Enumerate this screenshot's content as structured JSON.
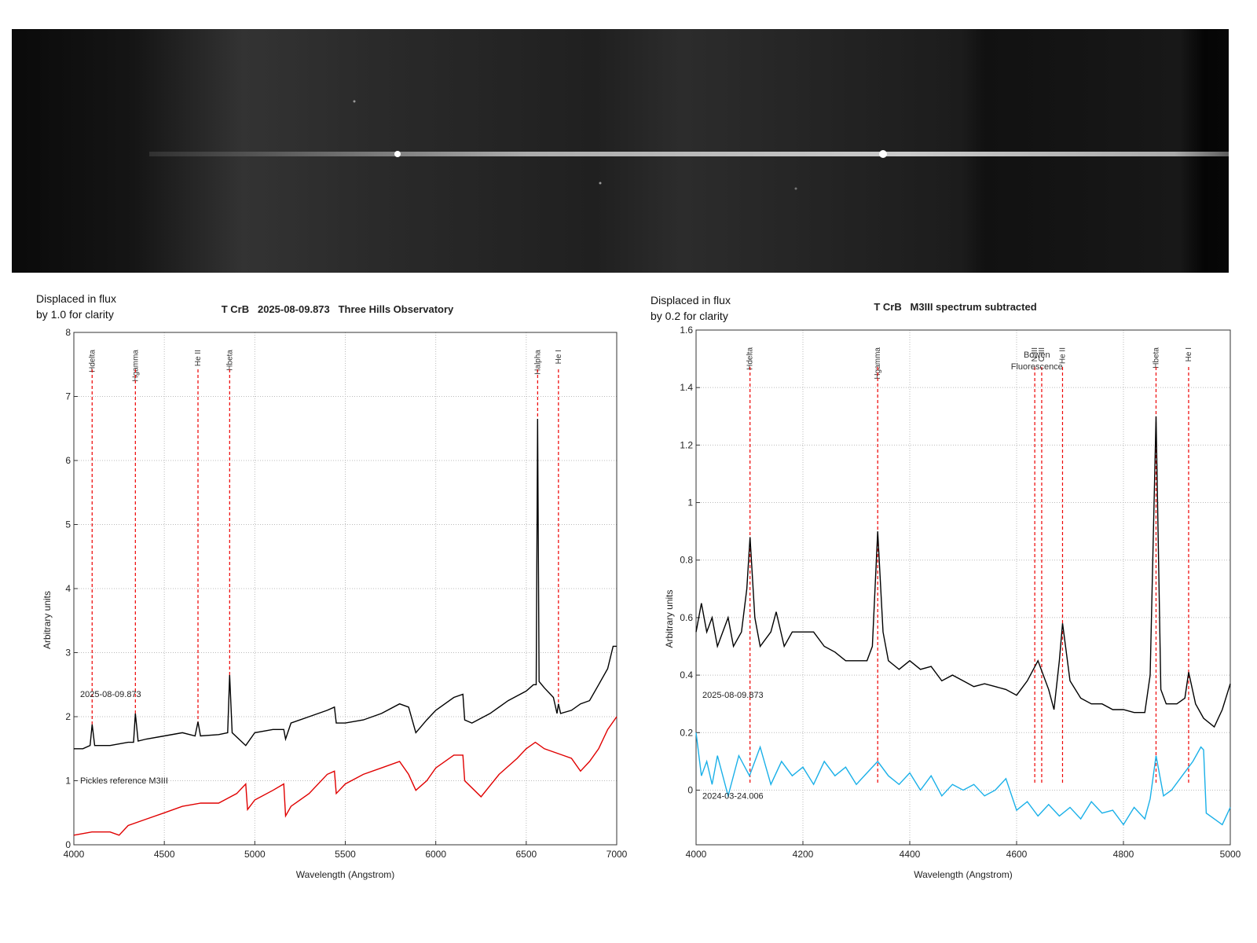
{
  "chart_data": [
    {
      "type": "line",
      "title": "T CrB   2025-08-09.873   Three Hills Observatory",
      "note": [
        "Displaced in flux",
        "by 1.0 for clarity"
      ],
      "xlabel": "Wavelength (Angstrom)",
      "ylabel": "Arbitrary units",
      "xlim": [
        4000,
        7000
      ],
      "xticks": [
        4000,
        4500,
        5000,
        5500,
        6000,
        6500,
        7000
      ],
      "ylim": [
        0,
        8
      ],
      "yticks": [
        0,
        1,
        2,
        3,
        4,
        5,
        6,
        7,
        8
      ],
      "grid": true,
      "annotations": [
        {
          "label": "Hdelta",
          "x": 4101
        },
        {
          "label": "Hgamma",
          "x": 4340
        },
        {
          "label": "He II",
          "x": 4686
        },
        {
          "label": "Hbeta",
          "x": 4861
        },
        {
          "label": "Halpha",
          "x": 6563
        },
        {
          "label": "He I",
          "x": 6678
        }
      ],
      "series": [
        {
          "name": "2025-08-09.873",
          "color": "#000000",
          "x": [
            4000,
            4050,
            4090,
            4101,
            4115,
            4200,
            4300,
            4330,
            4340,
            4355,
            4400,
            4500,
            4600,
            4670,
            4686,
            4700,
            4800,
            4850,
            4861,
            4875,
            4950,
            5000,
            5100,
            5160,
            5170,
            5200,
            5300,
            5400,
            5440,
            5450,
            5500,
            5600,
            5700,
            5800,
            5850,
            5890,
            5950,
            6000,
            6100,
            6150,
            6160,
            6200,
            6300,
            6400,
            6500,
            6540,
            6555,
            6563,
            6571,
            6600,
            6650,
            6670,
            6678,
            6690,
            6750,
            6800,
            6850,
            6900,
            6950,
            6980,
            7000
          ],
          "values": [
            1.5,
            1.5,
            1.55,
            1.88,
            1.55,
            1.55,
            1.6,
            1.6,
            2.05,
            1.62,
            1.65,
            1.7,
            1.75,
            1.7,
            1.92,
            1.7,
            1.72,
            1.75,
            2.65,
            1.75,
            1.55,
            1.75,
            1.8,
            1.8,
            1.65,
            1.9,
            2.0,
            2.1,
            2.15,
            1.9,
            1.9,
            1.95,
            2.05,
            2.2,
            2.15,
            1.75,
            1.95,
            2.1,
            2.3,
            2.35,
            1.95,
            1.9,
            2.05,
            2.25,
            2.4,
            2.5,
            2.5,
            6.65,
            2.55,
            2.45,
            2.3,
            2.05,
            2.2,
            2.05,
            2.1,
            2.2,
            2.25,
            2.5,
            2.75,
            3.1,
            3.1
          ]
        },
        {
          "name": "Pickles reference M3III",
          "color": "#e00000",
          "x": [
            4000,
            4100,
            4200,
            4250,
            4300,
            4400,
            4500,
            4600,
            4700,
            4800,
            4900,
            4950,
            4960,
            5000,
            5100,
            5160,
            5170,
            5200,
            5300,
            5400,
            5440,
            5450,
            5500,
            5600,
            5700,
            5800,
            5850,
            5890,
            5950,
            6000,
            6100,
            6150,
            6160,
            6250,
            6350,
            6450,
            6500,
            6550,
            6600,
            6700,
            6750,
            6800,
            6850,
            6900,
            6950,
            7000
          ],
          "values": [
            0.15,
            0.2,
            0.2,
            0.15,
            0.3,
            0.4,
            0.5,
            0.6,
            0.65,
            0.65,
            0.8,
            0.95,
            0.55,
            0.7,
            0.85,
            0.95,
            0.45,
            0.6,
            0.8,
            1.1,
            1.15,
            0.8,
            0.95,
            1.1,
            1.2,
            1.3,
            1.1,
            0.85,
            1.0,
            1.2,
            1.4,
            1.4,
            1.0,
            0.75,
            1.1,
            1.35,
            1.5,
            1.6,
            1.5,
            1.4,
            1.35,
            1.15,
            1.3,
            1.5,
            1.8,
            2.0
          ]
        }
      ]
    },
    {
      "type": "line",
      "title": "T CrB   M3III spectrum subtracted",
      "note": [
        "Displaced in flux",
        "by 0.2 for clarity"
      ],
      "xlabel": "Wavelength (Angstrom)",
      "ylabel": "Arbitrary units",
      "xlim": [
        4000,
        5000
      ],
      "xticks": [
        4000,
        4200,
        4400,
        4600,
        4800,
        5000
      ],
      "ylim": [
        -0.19,
        1.6
      ],
      "yticks": [
        0,
        0.2,
        0.4,
        0.6,
        0.8,
        1,
        1.2,
        1.4,
        1.6
      ],
      "grid": true,
      "group_label": [
        "Bowen",
        "Fluorescence"
      ],
      "annotations": [
        {
          "label": "Hdelta",
          "x": 4101
        },
        {
          "label": "Hgamma",
          "x": 4340
        },
        {
          "label": "N III",
          "x": 4634
        },
        {
          "label": "C III",
          "x": 4647
        },
        {
          "label": "He II",
          "x": 4686
        },
        {
          "label": "Hbeta",
          "x": 4861
        },
        {
          "label": "He I",
          "x": 4922
        }
      ],
      "series": [
        {
          "name": "2025-08-09.873",
          "color": "#000000",
          "x": [
            4000,
            4010,
            4020,
            4030,
            4040,
            4060,
            4070,
            4085,
            4095,
            4101,
            4110,
            4120,
            4140,
            4150,
            4165,
            4180,
            4200,
            4220,
            4240,
            4260,
            4280,
            4300,
            4320,
            4330,
            4340,
            4350,
            4360,
            4380,
            4400,
            4420,
            4440,
            4460,
            4480,
            4500,
            4520,
            4540,
            4560,
            4580,
            4600,
            4620,
            4640,
            4660,
            4670,
            4680,
            4686,
            4700,
            4720,
            4740,
            4760,
            4780,
            4800,
            4820,
            4840,
            4850,
            4861,
            4870,
            4880,
            4900,
            4915,
            4922,
            4935,
            4950,
            4970,
            4985,
            5000
          ],
          "values": [
            0.55,
            0.65,
            0.55,
            0.6,
            0.5,
            0.6,
            0.5,
            0.55,
            0.7,
            0.88,
            0.6,
            0.5,
            0.55,
            0.62,
            0.5,
            0.55,
            0.55,
            0.55,
            0.5,
            0.48,
            0.45,
            0.45,
            0.45,
            0.5,
            0.9,
            0.55,
            0.45,
            0.42,
            0.45,
            0.42,
            0.43,
            0.38,
            0.4,
            0.38,
            0.36,
            0.37,
            0.36,
            0.35,
            0.33,
            0.38,
            0.45,
            0.35,
            0.28,
            0.45,
            0.58,
            0.38,
            0.32,
            0.3,
            0.3,
            0.28,
            0.28,
            0.27,
            0.27,
            0.4,
            1.3,
            0.35,
            0.3,
            0.3,
            0.32,
            0.41,
            0.3,
            0.25,
            0.22,
            0.28,
            0.37
          ]
        },
        {
          "name": "2024-03-24.006",
          "color": "#1ab0e8",
          "x": [
            4000,
            4010,
            4020,
            4030,
            4040,
            4060,
            4080,
            4100,
            4120,
            4140,
            4160,
            4180,
            4200,
            4220,
            4240,
            4260,
            4280,
            4300,
            4320,
            4340,
            4360,
            4380,
            4400,
            4420,
            4440,
            4460,
            4480,
            4500,
            4520,
            4540,
            4560,
            4580,
            4600,
            4620,
            4640,
            4660,
            4680,
            4700,
            4720,
            4740,
            4760,
            4780,
            4800,
            4820,
            4840,
            4850,
            4861,
            4875,
            4890,
            4910,
            4930,
            4945,
            4950,
            4955,
            4970,
            4985,
            5000
          ],
          "values": [
            0.2,
            0.05,
            0.1,
            0.02,
            0.12,
            -0.02,
            0.12,
            0.05,
            0.15,
            0.02,
            0.1,
            0.05,
            0.08,
            0.02,
            0.1,
            0.05,
            0.08,
            0.02,
            0.06,
            0.1,
            0.05,
            0.02,
            0.06,
            0.0,
            0.05,
            -0.02,
            0.02,
            0.0,
            0.02,
            -0.02,
            0.0,
            0.04,
            -0.07,
            -0.04,
            -0.09,
            -0.05,
            -0.09,
            -0.06,
            -0.1,
            -0.04,
            -0.08,
            -0.07,
            -0.12,
            -0.06,
            -0.1,
            -0.03,
            0.12,
            -0.02,
            0.0,
            0.05,
            0.1,
            0.15,
            0.14,
            -0.08,
            -0.1,
            -0.12,
            -0.06
          ]
        }
      ]
    }
  ]
}
